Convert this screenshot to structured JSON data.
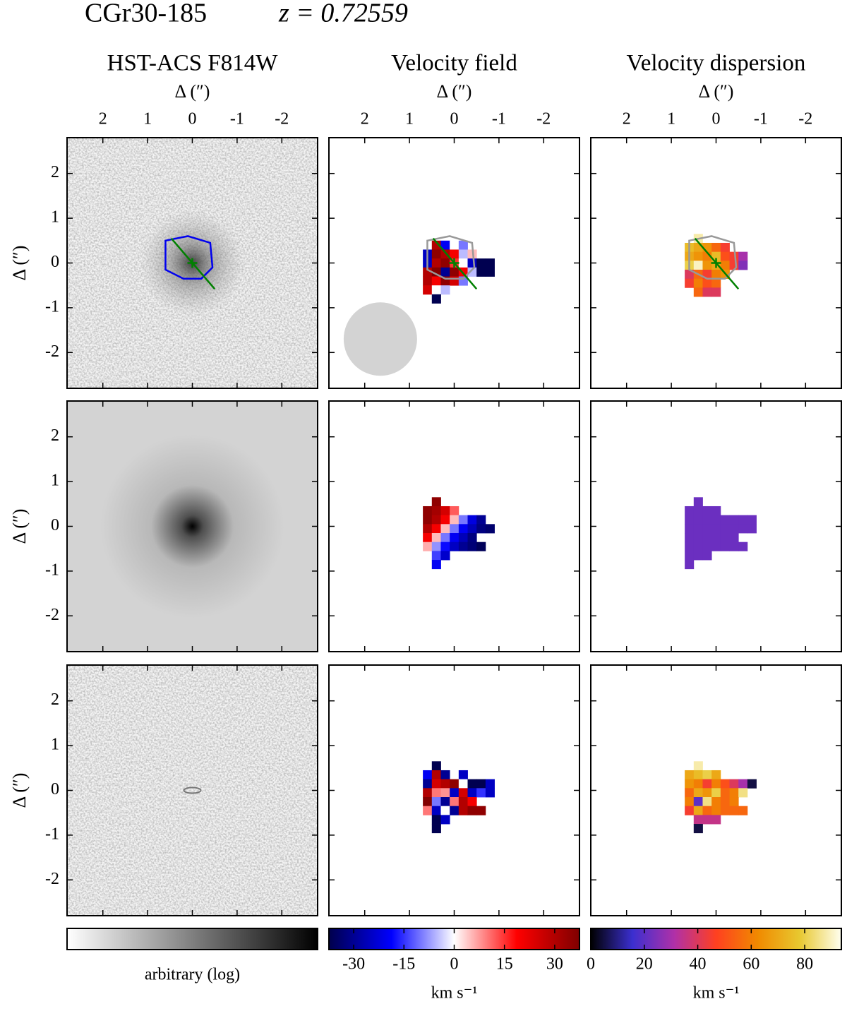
{
  "chart_data": {
    "type": "kinematic-maps",
    "title": "CGr30-185",
    "subtitle": "z = 0.72559",
    "xlabel": "Δ   (″)",
    "ylabel": "Δ   (″)",
    "xlim": [
      2.8,
      -2.8
    ],
    "ylim": [
      -2.8,
      2.8
    ],
    "xticks": [
      2,
      1,
      0,
      -1,
      -2
    ],
    "yticks": [
      -2,
      -1,
      0,
      1,
      2
    ],
    "columns": [
      {
        "title": "HST-ACS F814W",
        "colorbar": {
          "label": "arbitrary (log)",
          "colors": [
            "#ffffff",
            "#000000"
          ]
        }
      },
      {
        "title": "Velocity field",
        "colorbar": {
          "label": "km s⁻¹",
          "lim": [
            -37.4,
            37.4
          ],
          "ticks": [
            -30,
            -15,
            0,
            15,
            30
          ],
          "colors": [
            "#00004c",
            "#0000ff",
            "#ffffff",
            "#ff0000",
            "#7f0000"
          ]
        }
      },
      {
        "title": "Velocity dispersion",
        "colorbar": {
          "label": "km s⁻¹",
          "lim": [
            0,
            93.7
          ],
          "ticks": [
            0,
            20,
            40,
            60,
            80
          ],
          "colors": [
            "#000000",
            "#3b2fd0",
            "#b030a8",
            "#ff4020",
            "#f08a00",
            "#e8c830",
            "#fffff0"
          ]
        }
      }
    ],
    "velocity_maps": [
      {
        "x0": 0.7,
        "y0": 0.5,
        "step": 0.2,
        "values": [
          [
            null,
            30,
            -20,
            0,
            -10,
            null,
            null,
            null
          ],
          [
            -25,
            35,
            30,
            20,
            -5,
            5,
            null,
            null
          ],
          [
            -25,
            30,
            35,
            15,
            0,
            -25,
            -37,
            -37
          ],
          [
            30,
            37,
            -30,
            35,
            20,
            -5,
            -37,
            -37
          ],
          [
            30,
            20,
            35,
            25,
            -10,
            null,
            null,
            null
          ],
          [
            25,
            0,
            -5,
            null,
            null,
            null,
            null,
            null
          ],
          [
            null,
            -37,
            null,
            null,
            null,
            null,
            null,
            null
          ]
        ]
      },
      {
        "x0": 0.7,
        "y0": 0.65,
        "step": 0.2,
        "values": [
          [
            null,
            35,
            null,
            null,
            null,
            null,
            null,
            null
          ],
          [
            35,
            32,
            25,
            12,
            null,
            null,
            null,
            null
          ],
          [
            35,
            30,
            20,
            5,
            -10,
            -22,
            -30,
            null
          ],
          [
            30,
            20,
            5,
            -10,
            -20,
            -26,
            -32,
            -34
          ],
          [
            20,
            5,
            -10,
            -20,
            -26,
            -32,
            null,
            null
          ],
          [
            6,
            -8,
            -18,
            -25,
            -30,
            -33,
            -36,
            null
          ],
          [
            null,
            -14,
            -24,
            null,
            null,
            null,
            null,
            null
          ],
          [
            null,
            -20,
            null,
            null,
            null,
            null,
            null,
            null
          ]
        ]
      },
      {
        "x0": 0.7,
        "y0": 0.65,
        "step": 0.2,
        "values": [
          [
            null,
            -37,
            null,
            null,
            null,
            null,
            null,
            null
          ],
          [
            -20,
            30,
            -30,
            null,
            -25,
            null,
            null,
            null
          ],
          [
            -30,
            25,
            30,
            35,
            0,
            -37,
            -37,
            -25
          ],
          [
            30,
            10,
            8,
            -25,
            25,
            -25,
            -15,
            -25
          ],
          [
            37,
            -10,
            -30,
            10,
            30,
            20,
            null,
            null
          ],
          [
            10,
            -25,
            0,
            -30,
            30,
            35,
            35,
            null
          ],
          [
            null,
            -37,
            -25,
            null,
            null,
            null,
            null,
            null
          ],
          [
            null,
            -37,
            null,
            null,
            null,
            null,
            null,
            null
          ]
        ]
      }
    ],
    "dispersion_maps": [
      {
        "x0": 0.7,
        "y0": 0.65,
        "step": 0.2,
        "values": [
          [
            null,
            88,
            null,
            null,
            null,
            null,
            null,
            null
          ],
          [
            75,
            70,
            65,
            55,
            45,
            null,
            null,
            null
          ],
          [
            70,
            65,
            60,
            75,
            50,
            45,
            30,
            null
          ],
          [
            80,
            90,
            65,
            70,
            60,
            45,
            25,
            null
          ],
          [
            40,
            55,
            45,
            60,
            65,
            null,
            null,
            null
          ],
          [
            45,
            60,
            50,
            55,
            null,
            null,
            null,
            null
          ],
          [
            null,
            55,
            40,
            40,
            null,
            null,
            null,
            null
          ]
        ]
      },
      {
        "x0": 0.7,
        "y0": 0.65,
        "step": 0.2,
        "values": [
          [
            null,
            22,
            null,
            null,
            null,
            null,
            null,
            null
          ],
          [
            22,
            22,
            22,
            22,
            null,
            null,
            null,
            null
          ],
          [
            22,
            22,
            22,
            22,
            22,
            22,
            22,
            22
          ],
          [
            22,
            22,
            22,
            22,
            22,
            22,
            22,
            22
          ],
          [
            22,
            22,
            22,
            22,
            22,
            22,
            null,
            null
          ],
          [
            22,
            22,
            22,
            22,
            22,
            22,
            22,
            null
          ],
          [
            22,
            22,
            22,
            null,
            null,
            null,
            null,
            null
          ],
          [
            22,
            null,
            null,
            null,
            null,
            null,
            null,
            null
          ]
        ]
      },
      {
        "x0": 0.7,
        "y0": 0.65,
        "step": 0.2,
        "values": [
          [
            null,
            88,
            null,
            null,
            null,
            null,
            null,
            null
          ],
          [
            70,
            75,
            80,
            70,
            null,
            null,
            null,
            null
          ],
          [
            65,
            60,
            45,
            60,
            50,
            40,
            30,
            5
          ],
          [
            55,
            70,
            65,
            80,
            55,
            60,
            85,
            null
          ],
          [
            60,
            20,
            85,
            60,
            55,
            60,
            null,
            null
          ],
          [
            45,
            70,
            55,
            60,
            55,
            55,
            55,
            null
          ],
          [
            null,
            35,
            35,
            35,
            null,
            null,
            null,
            null
          ],
          [
            null,
            5,
            null,
            null,
            null,
            null,
            null,
            null
          ]
        ]
      }
    ]
  }
}
